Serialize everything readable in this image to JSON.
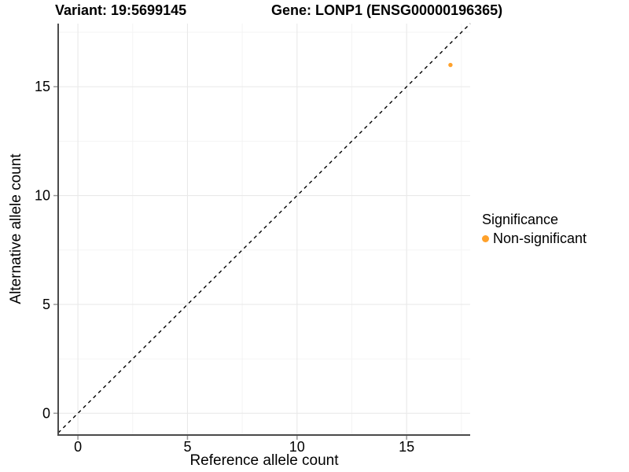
{
  "figure": {
    "title_left": "Variant: 19:5699145",
    "title_right": "Gene: LONP1 (ENSG00000196365)"
  },
  "chart_data": {
    "type": "scatter",
    "title": "Variant: 19:5699145   Gene: LONP1 (ENSG00000196365)",
    "xlabel": "Reference allele count",
    "ylabel": "Alternative allele count",
    "xlim": [
      -0.9,
      17.9
    ],
    "ylim": [
      -1.0,
      17.9
    ],
    "x_ticks": [
      0,
      5,
      10,
      15
    ],
    "y_ticks": [
      0,
      5,
      10,
      15
    ],
    "x_minor_ticks": [
      2.5,
      7.5,
      12.5,
      17.5
    ],
    "y_minor_ticks": [
      2.5,
      7.5,
      12.5,
      17.5
    ],
    "grid": true,
    "series": [
      {
        "name": "Non-significant",
        "color": "#FFA12B",
        "points": [
          {
            "x": 17,
            "y": 16
          }
        ]
      }
    ],
    "reference_line": {
      "type": "identity y = x",
      "style": "dashed",
      "color": "#000000"
    },
    "legend": {
      "title": "Significance",
      "position": "right",
      "entries": [
        {
          "label": "Non-significant",
          "color": "#FFA12B",
          "marker": "circle"
        }
      ]
    }
  },
  "colors": {
    "point_orange": "#FFA12B",
    "axis_line": "#4a4a4a",
    "tick_mark": "#999999",
    "grid_major": "#e9e9e9",
    "grid_minor": "#f3f3f3",
    "dashed_line": "#000000",
    "background": "#ffffff",
    "text": "#000000"
  }
}
